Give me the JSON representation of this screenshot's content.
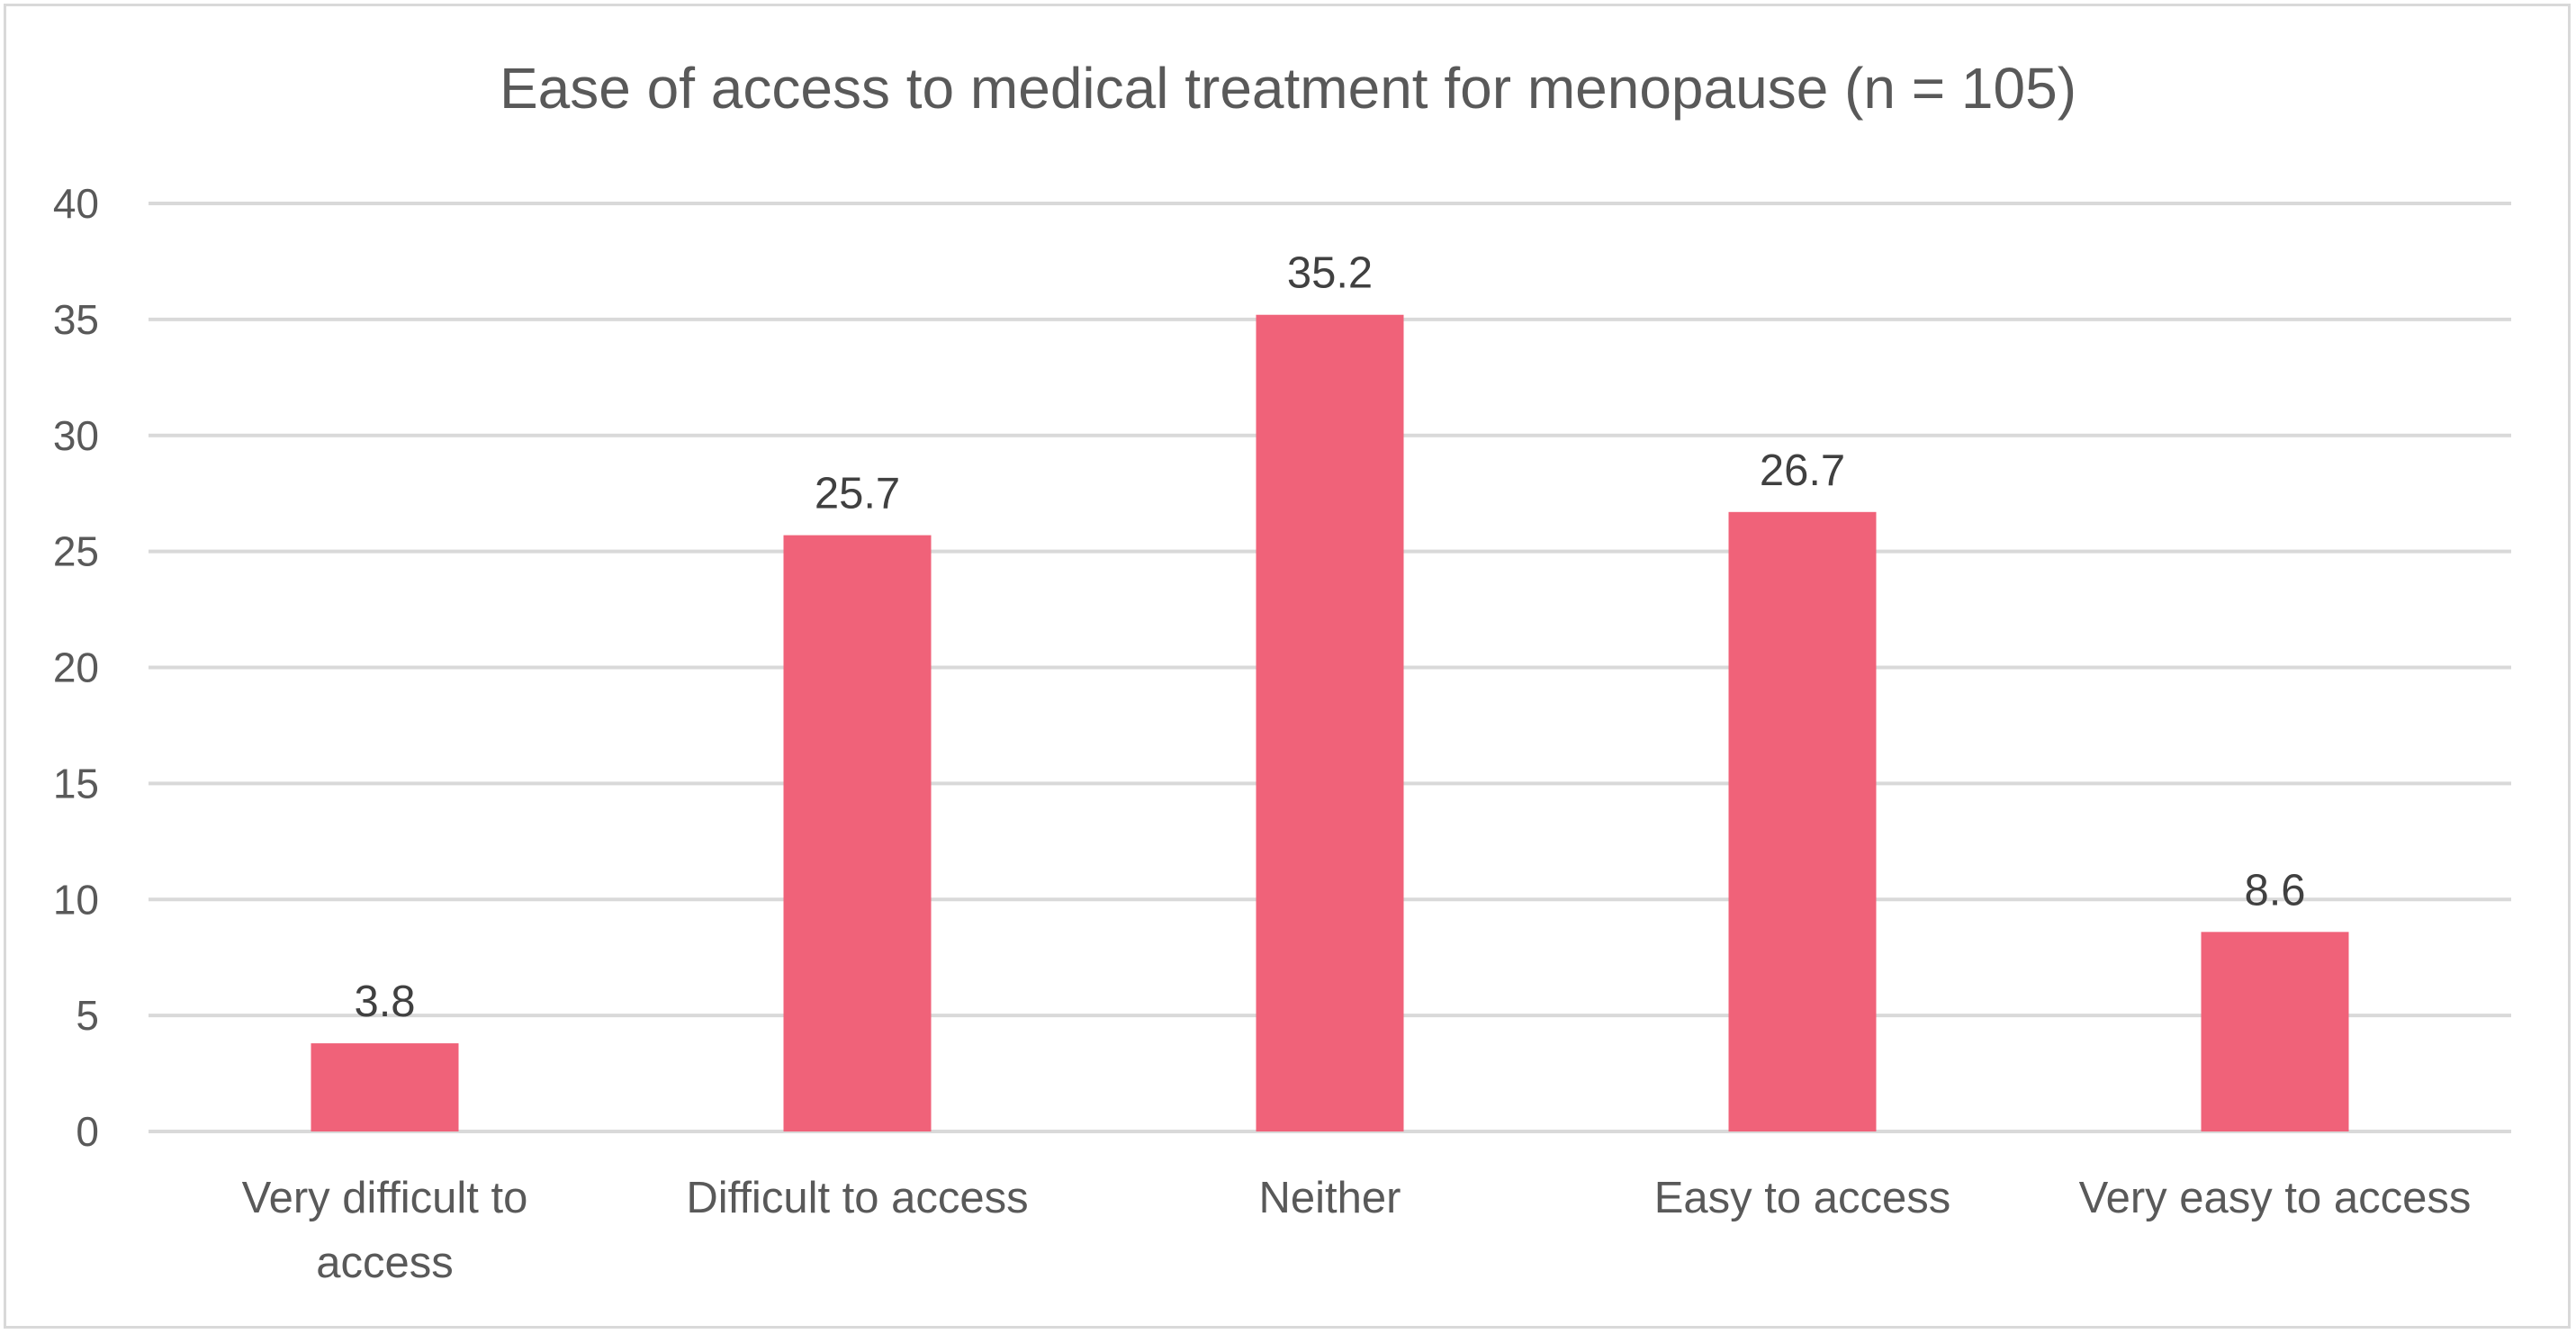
{
  "chart_data": {
    "type": "bar",
    "title": "Ease of access to medical treatment for menopause (n = 105)",
    "categories": [
      [
        "Very difficult to",
        "access"
      ],
      [
        "Difficult to access"
      ],
      [
        "Neither"
      ],
      [
        "Easy to access"
      ],
      [
        "Very easy to access"
      ]
    ],
    "values": [
      3.8,
      25.7,
      35.2,
      26.7,
      8.6
    ],
    "data_labels": [
      "3.8",
      "25.7",
      "35.2",
      "26.7",
      "8.6"
    ],
    "yticks": [
      "0",
      "5",
      "10",
      "15",
      "20",
      "25",
      "30",
      "35",
      "40"
    ],
    "ylim": [
      0,
      40
    ],
    "grid": true,
    "legend": "none",
    "bar_color": "#f06279",
    "grid_color": "#d9d9d9"
  }
}
